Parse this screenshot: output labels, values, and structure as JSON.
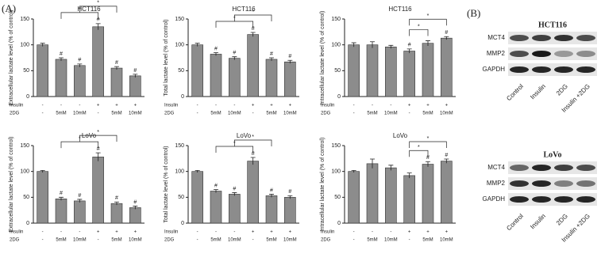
{
  "panel_labels": [
    "(A)",
    "(B)"
  ],
  "chart_data": [
    {
      "type": "bar",
      "title": "HCT116",
      "y_label": "Extracellular lactate level (% of control)",
      "color": "#8c8c8c",
      "values": [
        100,
        72,
        60,
        135,
        55,
        40
      ],
      "errors": [
        3,
        3,
        3,
        6,
        3,
        3
      ],
      "bar_marks": [
        null,
        "#",
        "#",
        "#",
        "#",
        "#"
      ],
      "brackets": [
        {
          "between": [
            1,
            3
          ],
          "label": "*"
        },
        {
          "between": [
            2,
            4
          ],
          "label": "*"
        }
      ],
      "ylim": [
        0,
        150
      ],
      "yticks": [
        0,
        50,
        100,
        150
      ],
      "conditions": [
        {
          "name": "Insulin",
          "labels": [
            "-",
            "-",
            "-",
            "+",
            "+",
            "+"
          ]
        },
        {
          "name": "2DG",
          "labels": [
            "-",
            "5mM",
            "10mM",
            "-",
            "5mM",
            "10mM"
          ]
        }
      ]
    },
    {
      "type": "bar",
      "title": "HCT116",
      "y_label": "Total lactate level (% of control)",
      "color": "#8c8c8c",
      "values": [
        100,
        82,
        74,
        120,
        72,
        67
      ],
      "errors": [
        3,
        3,
        3,
        4,
        3,
        3
      ],
      "bar_marks": [
        null,
        "#",
        "#",
        "#",
        "#",
        "#"
      ],
      "brackets": [
        {
          "between": [
            1,
            3
          ],
          "label": "*"
        },
        {
          "between": [
            2,
            4
          ],
          "label": "*"
        }
      ],
      "ylim": [
        0,
        150
      ],
      "yticks": [
        0,
        50,
        100,
        150
      ],
      "conditions": [
        {
          "name": "Insulin",
          "labels": [
            "-",
            "-",
            "-",
            "+",
            "+",
            "+"
          ]
        },
        {
          "name": "2DG",
          "labels": [
            "-",
            "5mM",
            "10mM",
            "-",
            "5mM",
            "10mM"
          ]
        }
      ]
    },
    {
      "type": "bar",
      "title": "HCT116",
      "y_label": "Intracellular lactate level (% of control)",
      "color": "#8c8c8c",
      "values": [
        100,
        100,
        96,
        88,
        103,
        113
      ],
      "errors": [
        4,
        6,
        3,
        4,
        5,
        3
      ],
      "bar_marks": [
        null,
        null,
        null,
        "#",
        null,
        "#"
      ],
      "brackets": [
        {
          "between": [
            3,
            4
          ],
          "label": "*"
        },
        {
          "between": [
            3,
            5
          ],
          "label": "*"
        }
      ],
      "ylim": [
        0,
        150
      ],
      "yticks": [
        0,
        50,
        100,
        150
      ],
      "conditions": [
        {
          "name": "Insulin",
          "labels": [
            "-",
            "-",
            "-",
            "+",
            "+",
            "+"
          ]
        },
        {
          "name": "2DG",
          "labels": [
            "-",
            "5mM",
            "10mM",
            "-",
            "5mM",
            "10mM"
          ]
        }
      ]
    },
    {
      "type": "bar",
      "title": "LoVo",
      "y_label": "Extracellular lactate level (% of control)",
      "color": "#8c8c8c",
      "values": [
        100,
        47,
        43,
        128,
        38,
        30
      ],
      "errors": [
        2,
        3,
        3,
        8,
        3,
        3
      ],
      "bar_marks": [
        null,
        "#",
        "#",
        "#",
        "#",
        "#"
      ],
      "brackets": [
        {
          "between": [
            1,
            3
          ],
          "label": "*"
        },
        {
          "between": [
            2,
            4
          ],
          "label": "*"
        }
      ],
      "ylim": [
        0,
        150
      ],
      "yticks": [
        0,
        50,
        100,
        150
      ],
      "conditions": [
        {
          "name": "Insulin",
          "labels": [
            "-",
            "-",
            "-",
            "+",
            "+",
            "+"
          ]
        },
        {
          "name": "2DG",
          "labels": [
            "-",
            "5mM",
            "10mM",
            "-",
            "5mM",
            "10mM"
          ]
        }
      ]
    },
    {
      "type": "bar",
      "title": "LoVo",
      "y_label": "Total lactate level (% of control)",
      "color": "#8c8c8c",
      "values": [
        100,
        62,
        56,
        120,
        53,
        50
      ],
      "errors": [
        2,
        3,
        3,
        7,
        3,
        3
      ],
      "bar_marks": [
        null,
        "#",
        "#",
        "#",
        "#",
        "#"
      ],
      "brackets": [
        {
          "between": [
            1,
            3
          ],
          "label": "*"
        },
        {
          "between": [
            2,
            4
          ],
          "label": "*"
        }
      ],
      "ylim": [
        0,
        150
      ],
      "yticks": [
        0,
        50,
        100,
        150
      ],
      "conditions": [
        {
          "name": "Insulin",
          "labels": [
            "-",
            "-",
            "-",
            "+",
            "+",
            "+"
          ]
        },
        {
          "name": "2DG",
          "labels": [
            "-",
            "5mM",
            "10mM",
            "-",
            "5mM",
            "10mM"
          ]
        }
      ]
    },
    {
      "type": "bar",
      "title": "LoVo",
      "y_label": "Intracellular lactate level (% of control)",
      "color": "#8c8c8c",
      "values": [
        100,
        115,
        107,
        92,
        114,
        120
      ],
      "errors": [
        2,
        9,
        5,
        5,
        5,
        4
      ],
      "bar_marks": [
        null,
        null,
        null,
        null,
        "#",
        "#"
      ],
      "brackets": [
        {
          "between": [
            3,
            4
          ],
          "label": "*"
        },
        {
          "between": [
            3,
            5
          ],
          "label": "*"
        }
      ],
      "ylim": [
        0,
        150
      ],
      "yticks": [
        0,
        50,
        100,
        150
      ],
      "conditions": [
        {
          "name": "Insulin",
          "labels": [
            "-",
            "-",
            "-",
            "+",
            "+",
            "+"
          ]
        },
        {
          "name": "2DG",
          "labels": [
            "-",
            "5mM",
            "10mM",
            "-",
            "5mM",
            "10mM"
          ]
        }
      ]
    }
  ],
  "blots": [
    {
      "title": "HCT116",
      "rows": [
        "MCT4",
        "MMP2",
        "GAPDH"
      ],
      "lanes": [
        "Control",
        "Insulin",
        "2DG",
        "Insulin +2DG"
      ]
    },
    {
      "title": "LoVo",
      "rows": [
        "MCT4",
        "MMP2",
        "GAPDH"
      ],
      "lanes": [
        "Control",
        "Insulin",
        "2DG",
        "Insulin +2DG"
      ]
    }
  ]
}
